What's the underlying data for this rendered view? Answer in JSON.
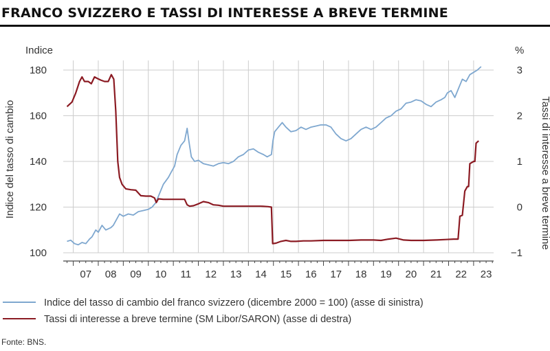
{
  "title": "FRANCO SVIZZERO E TASSI DI INTERESSE A BREVE TERMINE",
  "source": "Fonte: BNS.",
  "colors": {
    "chf": "#7ea7cf",
    "rate": "#8b1a22",
    "grid": "#cccccc",
    "axis": "#444444"
  },
  "chart_data": {
    "type": "line",
    "left_axis": {
      "unit_label": "Indice",
      "title": "Indice del tasso di cambio",
      "range": [
        100,
        180
      ],
      "ticks": [
        100,
        120,
        140,
        160,
        180
      ],
      "tick_labels": [
        "100",
        "120",
        "140",
        "160",
        "180"
      ]
    },
    "right_axis": {
      "unit_label": "%",
      "title": "Tassi di interesse a breve termine",
      "range": [
        -1,
        3
      ],
      "ticks": [
        -1,
        0,
        1,
        2,
        3
      ],
      "tick_labels": [
        "−1",
        "0",
        "1",
        "2",
        "3"
      ]
    },
    "x_axis": {
      "range": [
        2006.6,
        2023.8
      ],
      "tick_years": [
        2007,
        2008,
        2009,
        2010,
        2011,
        2012,
        2013,
        2014,
        2015,
        2016,
        2017,
        2018,
        2019,
        2020,
        2021,
        2022,
        2023
      ],
      "tick_labels": [
        "07",
        "08",
        "09",
        "10",
        "11",
        "12",
        "13",
        "14",
        "15",
        "16",
        "17",
        "18",
        "19",
        "20",
        "21",
        "22",
        "23"
      ]
    },
    "legend": {
      "placement": "bottom"
    },
    "series": [
      {
        "name": "Indice del tasso di cambio del franco svizzero (dicembre 2000 = 100) (asse di sinistra)",
        "axis": "left",
        "points": [
          [
            2006.75,
            105
          ],
          [
            2006.9,
            105.5
          ],
          [
            2007.05,
            104
          ],
          [
            2007.2,
            103.5
          ],
          [
            2007.35,
            104.5
          ],
          [
            2007.5,
            104
          ],
          [
            2007.65,
            106
          ],
          [
            2007.75,
            107
          ],
          [
            2007.9,
            110
          ],
          [
            2008.0,
            109
          ],
          [
            2008.15,
            112
          ],
          [
            2008.3,
            110
          ],
          [
            2008.5,
            111
          ],
          [
            2008.6,
            112
          ],
          [
            2008.75,
            115
          ],
          [
            2008.85,
            117
          ],
          [
            2009.0,
            116
          ],
          [
            2009.2,
            117
          ],
          [
            2009.4,
            116.5
          ],
          [
            2009.6,
            118
          ],
          [
            2009.8,
            118.5
          ],
          [
            2010.0,
            119
          ],
          [
            2010.15,
            120
          ],
          [
            2010.3,
            122
          ],
          [
            2010.45,
            126
          ],
          [
            2010.6,
            130
          ],
          [
            2010.8,
            133
          ],
          [
            2010.9,
            135
          ],
          [
            2011.05,
            138
          ],
          [
            2011.15,
            143
          ],
          [
            2011.3,
            147
          ],
          [
            2011.45,
            149
          ],
          [
            2011.55,
            154.5
          ],
          [
            2011.62,
            149
          ],
          [
            2011.72,
            142
          ],
          [
            2011.85,
            140
          ],
          [
            2012.0,
            140.5
          ],
          [
            2012.2,
            139
          ],
          [
            2012.4,
            138.5
          ],
          [
            2012.6,
            138
          ],
          [
            2012.8,
            139
          ],
          [
            2013.0,
            139.5
          ],
          [
            2013.2,
            139
          ],
          [
            2013.4,
            140
          ],
          [
            2013.6,
            142
          ],
          [
            2013.8,
            143
          ],
          [
            2014.0,
            145
          ],
          [
            2014.2,
            145.5
          ],
          [
            2014.4,
            144
          ],
          [
            2014.6,
            143
          ],
          [
            2014.75,
            142
          ],
          [
            2014.92,
            143
          ],
          [
            2014.98,
            149
          ],
          [
            2015.05,
            153
          ],
          [
            2015.2,
            155
          ],
          [
            2015.35,
            157
          ],
          [
            2015.5,
            155
          ],
          [
            2015.7,
            153
          ],
          [
            2015.9,
            153.5
          ],
          [
            2016.1,
            155
          ],
          [
            2016.3,
            154
          ],
          [
            2016.5,
            155
          ],
          [
            2016.7,
            155.5
          ],
          [
            2016.9,
            156
          ],
          [
            2017.1,
            156
          ],
          [
            2017.3,
            155
          ],
          [
            2017.5,
            152
          ],
          [
            2017.7,
            150
          ],
          [
            2017.9,
            149
          ],
          [
            2018.1,
            150
          ],
          [
            2018.3,
            152
          ],
          [
            2018.5,
            154
          ],
          [
            2018.7,
            155
          ],
          [
            2018.9,
            154
          ],
          [
            2019.1,
            155
          ],
          [
            2019.3,
            157
          ],
          [
            2019.5,
            159
          ],
          [
            2019.7,
            160
          ],
          [
            2019.9,
            162
          ],
          [
            2020.1,
            163
          ],
          [
            2020.3,
            165.5
          ],
          [
            2020.5,
            166
          ],
          [
            2020.7,
            167
          ],
          [
            2020.9,
            166.5
          ],
          [
            2021.1,
            165
          ],
          [
            2021.3,
            164
          ],
          [
            2021.5,
            166
          ],
          [
            2021.7,
            167
          ],
          [
            2021.85,
            168
          ],
          [
            2021.95,
            170
          ],
          [
            2022.1,
            171
          ],
          [
            2022.25,
            168
          ],
          [
            2022.4,
            172
          ],
          [
            2022.55,
            176
          ],
          [
            2022.7,
            175
          ],
          [
            2022.85,
            178
          ],
          [
            2023.0,
            179
          ],
          [
            2023.15,
            180
          ],
          [
            2023.3,
            181.5
          ]
        ]
      },
      {
        "name": "Tassi di interesse a breve termine (SM Libor/SARON) (asse di destra)",
        "axis": "right",
        "points": [
          [
            2006.75,
            2.2
          ],
          [
            2006.95,
            2.3
          ],
          [
            2007.1,
            2.5
          ],
          [
            2007.25,
            2.75
          ],
          [
            2007.35,
            2.85
          ],
          [
            2007.45,
            2.75
          ],
          [
            2007.6,
            2.75
          ],
          [
            2007.72,
            2.7
          ],
          [
            2007.85,
            2.85
          ],
          [
            2007.95,
            2.82
          ],
          [
            2008.1,
            2.78
          ],
          [
            2008.25,
            2.75
          ],
          [
            2008.4,
            2.75
          ],
          [
            2008.52,
            2.9
          ],
          [
            2008.62,
            2.8
          ],
          [
            2008.7,
            2.1
          ],
          [
            2008.78,
            1.0
          ],
          [
            2008.85,
            0.65
          ],
          [
            2008.95,
            0.5
          ],
          [
            2009.1,
            0.4
          ],
          [
            2009.3,
            0.38
          ],
          [
            2009.5,
            0.37
          ],
          [
            2009.7,
            0.25
          ],
          [
            2009.9,
            0.24
          ],
          [
            2010.1,
            0.24
          ],
          [
            2010.25,
            0.2
          ],
          [
            2010.32,
            0.1
          ],
          [
            2010.4,
            0.18
          ],
          [
            2010.6,
            0.17
          ],
          [
            2010.8,
            0.17
          ],
          [
            2011.0,
            0.17
          ],
          [
            2011.2,
            0.17
          ],
          [
            2011.45,
            0.17
          ],
          [
            2011.55,
            0.05
          ],
          [
            2011.65,
            0.02
          ],
          [
            2011.8,
            0.03
          ],
          [
            2012.0,
            0.07
          ],
          [
            2012.2,
            0.12
          ],
          [
            2012.4,
            0.1
          ],
          [
            2012.6,
            0.05
          ],
          [
            2012.8,
            0.04
          ],
          [
            2013.0,
            0.02
          ],
          [
            2013.5,
            0.02
          ],
          [
            2014.0,
            0.02
          ],
          [
            2014.5,
            0.02
          ],
          [
            2014.78,
            0.01
          ],
          [
            2014.92,
            0.0
          ],
          [
            2014.97,
            -0.8
          ],
          [
            2015.1,
            -0.79
          ],
          [
            2015.3,
            -0.75
          ],
          [
            2015.5,
            -0.73
          ],
          [
            2015.7,
            -0.75
          ],
          [
            2015.9,
            -0.75
          ],
          [
            2016.2,
            -0.74
          ],
          [
            2016.5,
            -0.74
          ],
          [
            2017.0,
            -0.73
          ],
          [
            2017.5,
            -0.73
          ],
          [
            2018.0,
            -0.73
          ],
          [
            2018.5,
            -0.72
          ],
          [
            2019.0,
            -0.72
          ],
          [
            2019.3,
            -0.73
          ],
          [
            2019.6,
            -0.7
          ],
          [
            2019.9,
            -0.68
          ],
          [
            2020.2,
            -0.72
          ],
          [
            2020.5,
            -0.73
          ],
          [
            2021.0,
            -0.73
          ],
          [
            2021.5,
            -0.72
          ],
          [
            2021.9,
            -0.71
          ],
          [
            2022.2,
            -0.7
          ],
          [
            2022.38,
            -0.7
          ],
          [
            2022.45,
            -0.2
          ],
          [
            2022.55,
            -0.18
          ],
          [
            2022.65,
            0.35
          ],
          [
            2022.75,
            0.45
          ],
          [
            2022.8,
            0.45
          ],
          [
            2022.85,
            0.95
          ],
          [
            2023.0,
            1.0
          ],
          [
            2023.05,
            1.0
          ],
          [
            2023.1,
            1.4
          ],
          [
            2023.2,
            1.45
          ]
        ]
      }
    ]
  }
}
